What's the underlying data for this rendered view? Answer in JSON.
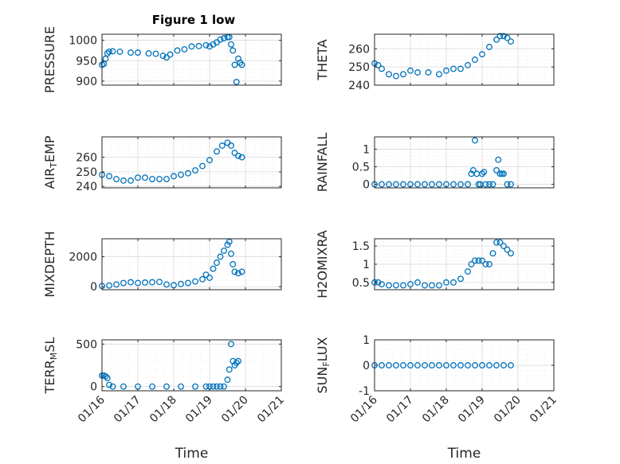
{
  "figure": {
    "title": "Figure 1 low"
  },
  "chart_data": [
    {
      "type": "scatter",
      "ylabel": "PRESSURE",
      "ylabel_parts": [
        [
          "PRESSURE",
          ""
        ]
      ],
      "ylim": [
        890,
        1015
      ],
      "yticks": [
        900,
        950,
        1000
      ],
      "xticks": [],
      "xlabel": "",
      "grid": true,
      "x_days": [
        16.0,
        16.05,
        16.1,
        16.15,
        16.2,
        16.3,
        16.5,
        16.8,
        17.0,
        17.3,
        17.5,
        17.7,
        17.8,
        17.9,
        18.1,
        18.3,
        18.5,
        18.7,
        18.9,
        19.0,
        19.1,
        19.2,
        19.3,
        19.4,
        19.5,
        19.55,
        19.6,
        19.65,
        19.7,
        19.75,
        19.8,
        19.85,
        19.9
      ],
      "y": [
        940,
        942,
        955,
        968,
        972,
        973,
        972,
        970,
        970,
        968,
        967,
        962,
        958,
        965,
        975,
        978,
        985,
        986,
        988,
        985,
        990,
        995,
        1002,
        1005,
        1008,
        1008,
        990,
        975,
        940,
        898,
        955,
        945,
        940
      ]
    },
    {
      "type": "scatter",
      "ylabel": "THETA",
      "ylabel_parts": [
        [
          "THETA",
          ""
        ]
      ],
      "ylim": [
        240,
        268
      ],
      "yticks": [
        240,
        250,
        260
      ],
      "xticks": [],
      "xlabel": "",
      "grid": true,
      "x_days": [
        16.0,
        16.1,
        16.2,
        16.4,
        16.6,
        16.8,
        17.0,
        17.2,
        17.5,
        17.8,
        18.0,
        18.2,
        18.4,
        18.6,
        18.8,
        19.0,
        19.2,
        19.4,
        19.5,
        19.6,
        19.7,
        19.8
      ],
      "y": [
        252,
        251,
        249,
        246,
        245,
        246,
        248,
        247,
        247,
        246,
        248,
        249,
        249,
        251,
        254,
        257,
        261,
        265,
        267,
        267,
        266,
        264
      ]
    },
    {
      "type": "scatter",
      "ylabel": "AIR_TEMP",
      "ylabel_parts": [
        [
          "AIR",
          ""
        ],
        [
          "T",
          "sub"
        ],
        [
          "EMP",
          ""
        ]
      ],
      "ylim": [
        239,
        274
      ],
      "yticks": [
        240,
        250,
        260
      ],
      "xticks": [],
      "xlabel": "",
      "grid": true,
      "x_days": [
        16.0,
        16.2,
        16.4,
        16.6,
        16.8,
        17.0,
        17.2,
        17.4,
        17.6,
        17.8,
        18.0,
        18.2,
        18.4,
        18.6,
        18.8,
        19.0,
        19.2,
        19.35,
        19.5,
        19.6,
        19.7,
        19.8,
        19.9
      ],
      "y": [
        248,
        247,
        245,
        244,
        244,
        246,
        246,
        245,
        245,
        245,
        247,
        248,
        249,
        251,
        254,
        258,
        264,
        268,
        270,
        268,
        263,
        261,
        260
      ]
    },
    {
      "type": "scatter",
      "ylabel": "RAINFALL",
      "ylabel_parts": [
        [
          "RAINFALL",
          ""
        ]
      ],
      "ylim": [
        -0.1,
        1.35
      ],
      "yticks": [
        0,
        0.5,
        1
      ],
      "xticks": [],
      "xlabel": "",
      "grid": true,
      "x_days": [
        16.0,
        16.2,
        16.4,
        16.6,
        16.8,
        17.0,
        17.2,
        17.4,
        17.6,
        17.8,
        18.0,
        18.2,
        18.4,
        18.6,
        18.7,
        18.75,
        18.8,
        18.85,
        18.9,
        18.95,
        19.0,
        19.05,
        19.1,
        19.2,
        19.3,
        19.4,
        19.45,
        19.5,
        19.55,
        19.6,
        19.7,
        19.8
      ],
      "y": [
        0,
        0,
        0,
        0,
        0,
        0,
        0,
        0,
        0,
        0,
        0,
        0,
        0,
        0,
        0.3,
        0.4,
        1.25,
        0.3,
        0,
        0,
        0.3,
        0.35,
        0,
        0,
        0,
        0.4,
        0.7,
        0.3,
        0.3,
        0.3,
        0,
        0
      ]
    },
    {
      "type": "scatter",
      "ylabel": "MIXDEPTH",
      "ylabel_parts": [
        [
          "MIXDEPTH",
          ""
        ]
      ],
      "ylim": [
        -200,
        3200
      ],
      "yticks": [
        0,
        2000
      ],
      "xticks": [],
      "xlabel": "",
      "grid": true,
      "x_days": [
        16.0,
        16.2,
        16.4,
        16.6,
        16.8,
        17.0,
        17.2,
        17.4,
        17.6,
        17.8,
        18.0,
        18.2,
        18.4,
        18.6,
        18.8,
        18.9,
        19.0,
        19.1,
        19.2,
        19.3,
        19.4,
        19.5,
        19.55,
        19.6,
        19.65,
        19.7,
        19.8,
        19.9
      ],
      "y": [
        50,
        80,
        150,
        250,
        300,
        250,
        280,
        300,
        320,
        150,
        100,
        180,
        250,
        350,
        500,
        800,
        600,
        1200,
        1600,
        2000,
        2400,
        2800,
        3000,
        2200,
        1500,
        1000,
        900,
        1000
      ]
    },
    {
      "type": "scatter",
      "ylabel": "H2OMIXRA",
      "ylabel_parts": [
        [
          "H2OMIXRA",
          ""
        ]
      ],
      "ylim": [
        0.3,
        1.7
      ],
      "yticks": [
        0.5,
        1,
        1.5
      ],
      "xticks": [],
      "xlabel": "",
      "grid": true,
      "x_days": [
        16.0,
        16.1,
        16.2,
        16.4,
        16.6,
        16.8,
        17.0,
        17.2,
        17.4,
        17.6,
        17.8,
        18.0,
        18.2,
        18.4,
        18.6,
        18.7,
        18.8,
        18.9,
        19.0,
        19.1,
        19.2,
        19.3,
        19.4,
        19.5,
        19.6,
        19.7,
        19.8
      ],
      "y": [
        0.5,
        0.5,
        0.45,
        0.42,
        0.42,
        0.42,
        0.45,
        0.5,
        0.42,
        0.42,
        0.42,
        0.5,
        0.5,
        0.6,
        0.8,
        1.0,
        1.1,
        1.1,
        1.1,
        1.0,
        1.0,
        1.3,
        1.6,
        1.6,
        1.5,
        1.4,
        1.3
      ]
    },
    {
      "type": "scatter",
      "ylabel": "TERR_MSL",
      "ylabel_parts": [
        [
          "TERR",
          ""
        ],
        [
          "M",
          "sub"
        ],
        [
          "SL",
          ""
        ]
      ],
      "ylim": [
        -50,
        550
      ],
      "yticks": [
        0,
        500
      ],
      "xticks": [
        "01/16",
        "01/17",
        "01/18",
        "01/19",
        "01/20",
        "01/21"
      ],
      "xlabel": "Time",
      "grid": true,
      "x_days": [
        16.0,
        16.05,
        16.1,
        16.15,
        16.2,
        16.3,
        16.6,
        17.0,
        17.4,
        17.8,
        18.2,
        18.6,
        18.9,
        19.0,
        19.1,
        19.2,
        19.3,
        19.4,
        19.5,
        19.55,
        19.6,
        19.65,
        19.7,
        19.75,
        19.8
      ],
      "y": [
        130,
        130,
        120,
        100,
        20,
        0,
        0,
        0,
        0,
        0,
        0,
        0,
        0,
        0,
        0,
        0,
        0,
        0,
        80,
        200,
        500,
        300,
        250,
        280,
        300
      ]
    },
    {
      "type": "scatter",
      "ylabel": "SUN_FLUX",
      "ylabel_parts": [
        [
          "SUN",
          ""
        ],
        [
          "F",
          "sub"
        ],
        [
          "LUX",
          ""
        ]
      ],
      "ylim": [
        -1,
        1
      ],
      "yticks": [
        -1,
        0,
        1
      ],
      "xticks": [
        "01/16",
        "01/17",
        "01/18",
        "01/19",
        "01/20",
        "01/21"
      ],
      "xlabel": "Time",
      "grid": true,
      "x_days": [
        16.0,
        16.2,
        16.4,
        16.6,
        16.8,
        17.0,
        17.2,
        17.4,
        17.6,
        17.8,
        18.0,
        18.2,
        18.4,
        18.6,
        18.8,
        19.0,
        19.2,
        19.4,
        19.6,
        19.8
      ],
      "y": [
        0,
        0,
        0,
        0,
        0,
        0,
        0,
        0,
        0,
        0,
        0,
        0,
        0,
        0,
        0,
        0,
        0,
        0,
        0,
        0
      ]
    }
  ],
  "colors": {
    "marker": "#0072BD",
    "axis": "#262626",
    "grid": "#d9d9d9",
    "minor_grid": "#ececec"
  }
}
